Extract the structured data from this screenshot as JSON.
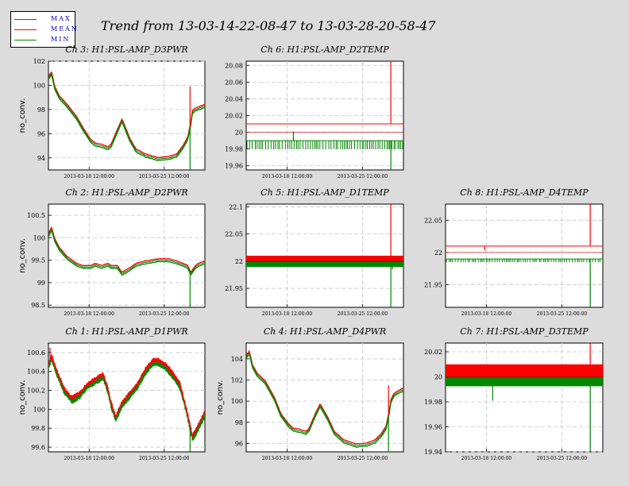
{
  "title": "Trend from 13-03-14-22-08-47 to 13-03-28-20-58-47",
  "legend": [
    {
      "label": "MAX",
      "color": "#ff0000"
    },
    {
      "label": "MEAN",
      "color": "#ff0000"
    },
    {
      "label": "MIN",
      "color": "#008800"
    }
  ],
  "colors": {
    "max": "#ff0000",
    "mean": "#cc0000",
    "min": "#008800",
    "background": "#dcdcdc",
    "plot_bg": "#ffffff",
    "grid": "#c8c8c8"
  },
  "chart_data": [
    {
      "type": "line",
      "title": "Ch 3: H1:PSL-AMP_D3PWR",
      "ylabel": "no_conv.",
      "style": "smooth",
      "ylim": [
        93,
        102
      ],
      "yticks": [
        94,
        96,
        98,
        100,
        102
      ],
      "xticks": [
        "2013-03-18 12:00:00",
        "2013-03-25 12:00:00"
      ],
      "series": [
        {
          "name": "MEAN",
          "x": [
            0,
            0.02,
            0.04,
            0.07,
            0.12,
            0.18,
            0.22,
            0.27,
            0.3,
            0.34,
            0.38,
            0.4,
            0.44,
            0.47,
            0.52,
            0.56,
            0.62,
            0.7,
            0.77,
            0.82,
            0.86,
            0.89,
            0.91,
            0.92,
            0.94,
            0.96,
            1.0
          ],
          "y": [
            100.6,
            101.0,
            99.8,
            99.0,
            98.3,
            97.3,
            96.4,
            95.4,
            95.1,
            95.0,
            94.8,
            95.0,
            96.2,
            97.1,
            95.5,
            94.6,
            94.2,
            93.9,
            94.0,
            94.2,
            94.9,
            95.6,
            96.8,
            97.8,
            98.0,
            98.1,
            98.3
          ]
        }
      ],
      "max_spikes": [
        {
          "x": 0.905,
          "y": 99.9
        }
      ],
      "min_spikes": [
        {
          "x": 0.905,
          "y": 93.0
        }
      ]
    },
    {
      "type": "line",
      "title": "Ch 6: H1:PSL-AMP_D2TEMP",
      "ylabel": "",
      "style": "dense-temp",
      "ylim": [
        19.955,
        20.085
      ],
      "yticks": [
        19.96,
        19.98,
        20,
        20.02,
        20.04,
        20.06,
        20.08
      ],
      "xticks": [
        "2013-03-18 12:00:00",
        "2013-03-25 12:00:00"
      ],
      "series": [
        {
          "name": "MAX",
          "x": [
            0,
            1
          ],
          "y": [
            20.01,
            20.01
          ]
        },
        {
          "name": "MEAN",
          "x": [
            0,
            1
          ],
          "y": [
            20.0,
            20.0
          ]
        },
        {
          "name": "MIN",
          "x": [
            0,
            1
          ],
          "y": [
            19.99,
            19.99
          ]
        }
      ],
      "band": null,
      "min_dip": 19.98,
      "max_spikes": [
        {
          "x": 0.92,
          "y": 20.085
        }
      ],
      "min_spikes": [
        {
          "x": 0.3,
          "y": 20.001
        },
        {
          "x": 0.92,
          "y": 19.955
        }
      ]
    },
    {
      "type": "line",
      "title": "Ch 2: H1:PSL-AMP_D2PWR",
      "ylabel": "no_conv.",
      "style": "smooth",
      "ylim": [
        98.45,
        100.75
      ],
      "yticks": [
        98.5,
        99,
        99.5,
        100,
        100.5
      ],
      "xticks": [
        "2013-03-18 12:00:00",
        "2013-03-25 12:00:00"
      ],
      "series": [
        {
          "name": "MEAN",
          "x": [
            0,
            0.02,
            0.04,
            0.07,
            0.12,
            0.18,
            0.22,
            0.27,
            0.3,
            0.34,
            0.38,
            0.4,
            0.44,
            0.47,
            0.52,
            0.56,
            0.62,
            0.7,
            0.77,
            0.82,
            0.86,
            0.89,
            0.91,
            0.92,
            0.94,
            0.96,
            1.0
          ],
          "y": [
            100.05,
            100.2,
            99.95,
            99.75,
            99.55,
            99.4,
            99.35,
            99.35,
            99.4,
            99.35,
            99.4,
            99.35,
            99.35,
            99.2,
            99.3,
            99.4,
            99.45,
            99.5,
            99.5,
            99.45,
            99.4,
            99.35,
            99.2,
            99.25,
            99.35,
            99.4,
            99.45
          ]
        }
      ],
      "max_spikes": [],
      "min_spikes": [
        {
          "x": 0.905,
          "y": 98.45
        }
      ]
    },
    {
      "type": "line",
      "title": "Ch 5: H1:PSL-AMP_D1TEMP",
      "ylabel": "",
      "style": "dense-temp",
      "ylim": [
        21.915,
        22.105
      ],
      "yticks": [
        21.95,
        22,
        22.05,
        22.1
      ],
      "xticks": [
        "2013-03-18 12:00:00",
        "2013-03-25 12:00:00"
      ],
      "series": [
        {
          "name": "MAX",
          "x": [
            0,
            1
          ],
          "y": [
            22.01,
            22.01
          ]
        },
        {
          "name": "MEAN",
          "x": [
            0,
            1
          ],
          "y": [
            22.0,
            22.0
          ]
        },
        {
          "name": "MIN",
          "x": [
            0,
            1
          ],
          "y": [
            21.995,
            21.995
          ]
        }
      ],
      "band": [
        22.0,
        22.01
      ],
      "min_dip": null,
      "max_spikes": [
        {
          "x": 0.92,
          "y": 22.105
        }
      ],
      "min_spikes": [
        {
          "x": 0.92,
          "y": 21.915
        },
        {
          "x": 0.93,
          "y": 21.985
        }
      ]
    },
    {
      "type": "line",
      "title": "Ch 8: H1:PSL-AMP_D4TEMP",
      "ylabel": "",
      "style": "dense-temp",
      "ylim": [
        21.915,
        22.075
      ],
      "yticks": [
        21.95,
        22,
        22.05
      ],
      "xticks": [
        "2013-03-18 12:00:00",
        "2013-03-25 12:00:00"
      ],
      "series": [
        {
          "name": "MAX",
          "x": [
            0,
            1
          ],
          "y": [
            22.01,
            22.01
          ]
        },
        {
          "name": "MEAN",
          "x": [
            0,
            1
          ],
          "y": [
            22.0,
            22.0
          ]
        },
        {
          "name": "MIN",
          "x": [
            0,
            1
          ],
          "y": [
            21.99,
            21.99
          ]
        }
      ],
      "band": null,
      "min_dip": 21.985,
      "max_spikes": [
        {
          "x": 0.25,
          "y": 22.003
        },
        {
          "x": 0.92,
          "y": 22.075
        }
      ],
      "min_spikes": [
        {
          "x": 0.92,
          "y": 21.915
        }
      ]
    },
    {
      "type": "line",
      "title": "Ch 1: H1:PSL-AMP_D1PWR",
      "ylabel": "no_conv.",
      "style": "noisy",
      "ylim": [
        99.55,
        100.7
      ],
      "yticks": [
        99.6,
        99.8,
        100,
        100.2,
        100.4,
        100.6
      ],
      "xticks": [
        "2013-03-18 12:00:00",
        "2013-03-25 12:00:00"
      ],
      "series": [
        {
          "name": "MEAN",
          "x": [
            0,
            0.02,
            0.05,
            0.1,
            0.15,
            0.2,
            0.25,
            0.3,
            0.35,
            0.38,
            0.4,
            0.43,
            0.47,
            0.52,
            0.57,
            0.62,
            0.67,
            0.7,
            0.75,
            0.8,
            0.84,
            0.88,
            0.9,
            0.92,
            0.94,
            0.97,
            1.0
          ],
          "y": [
            100.45,
            100.55,
            100.4,
            100.2,
            100.1,
            100.15,
            100.25,
            100.3,
            100.35,
            100.2,
            100.05,
            99.9,
            100.05,
            100.15,
            100.25,
            100.4,
            100.5,
            100.5,
            100.45,
            100.35,
            100.25,
            100.0,
            99.85,
            99.7,
            99.75,
            99.85,
            99.95
          ]
        }
      ],
      "max_spikes": [
        {
          "x": 0.01,
          "y": 100.65
        }
      ],
      "min_spikes": [
        {
          "x": 0.905,
          "y": 99.55
        }
      ]
    },
    {
      "type": "line",
      "title": "Ch 4: H1:PSL-AMP_D4PWR",
      "ylabel": "no_conv.",
      "style": "smooth",
      "ylim": [
        95.2,
        105.5
      ],
      "yticks": [
        96,
        98,
        100,
        102,
        104
      ],
      "xticks": [
        "2013-03-18 12:00:00",
        "2013-03-25 12:00:00"
      ],
      "series": [
        {
          "name": "MEAN",
          "x": [
            0,
            0.02,
            0.04,
            0.07,
            0.12,
            0.18,
            0.22,
            0.27,
            0.3,
            0.34,
            0.38,
            0.4,
            0.44,
            0.47,
            0.52,
            0.56,
            0.62,
            0.7,
            0.77,
            0.82,
            0.86,
            0.89,
            0.91,
            0.92,
            0.94,
            0.96,
            1.0
          ],
          "y": [
            104.2,
            104.6,
            103.3,
            102.5,
            101.8,
            100.2,
            98.7,
            97.7,
            97.3,
            97.2,
            97.0,
            97.3,
            98.7,
            99.6,
            98.3,
            97.0,
            96.2,
            95.8,
            95.9,
            96.2,
            96.8,
            97.5,
            99.0,
            100.0,
            100.6,
            100.8,
            101.1
          ]
        }
      ],
      "max_spikes": [
        {
          "x": 0.905,
          "y": 101.5
        }
      ],
      "min_spikes": [
        {
          "x": 0.905,
          "y": 95.2
        }
      ]
    },
    {
      "type": "line",
      "title": "Ch 7: H1:PSL-AMP_D3TEMP",
      "ylabel": "",
      "style": "dense-temp",
      "ylim": [
        19.94,
        20.027
      ],
      "yticks": [
        19.94,
        19.96,
        19.98,
        20,
        20.02
      ],
      "xticks": [
        "2013-03-18 12:00:00",
        "2013-03-25 12:00:00"
      ],
      "series": [
        {
          "name": "MAX",
          "x": [
            0,
            1
          ],
          "y": [
            20.01,
            20.01
          ]
        },
        {
          "name": "MEAN",
          "x": [
            0,
            1
          ],
          "y": [
            20.0,
            20.0
          ]
        },
        {
          "name": "MIN",
          "x": [
            0,
            1
          ],
          "y": [
            19.995,
            19.995
          ]
        }
      ],
      "band": [
        20.0,
        20.01
      ],
      "min_dip": null,
      "max_spikes": [
        {
          "x": 0.92,
          "y": 20.027
        }
      ],
      "min_spikes": [
        {
          "x": 0.3,
          "y": 19.981
        },
        {
          "x": 0.92,
          "y": 19.94
        }
      ]
    }
  ]
}
